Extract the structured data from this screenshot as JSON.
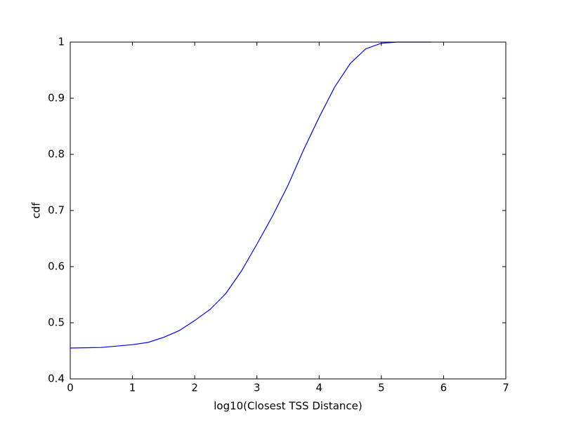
{
  "chart_data": {
    "type": "line",
    "xlabel": "log10(Closest TSS Distance)",
    "ylabel": "cdf",
    "x": [
      0,
      0.5,
      1,
      1.25,
      1.5,
      1.75,
      2,
      2.25,
      2.5,
      2.75,
      3,
      3.25,
      3.5,
      3.75,
      4,
      4.25,
      4.5,
      4.75,
      5,
      5.25,
      5.5,
      5.8
    ],
    "series": [
      {
        "name": "cdf",
        "color": "#0000ff",
        "values": [
          0.455,
          0.456,
          0.461,
          0.465,
          0.474,
          0.486,
          0.504,
          0.524,
          0.552,
          0.592,
          0.64,
          0.69,
          0.745,
          0.808,
          0.866,
          0.92,
          0.962,
          0.988,
          0.998,
          1.0,
          1.0,
          1.0
        ]
      }
    ],
    "xlim": [
      0,
      7
    ],
    "xticks": [
      0,
      1,
      2,
      3,
      4,
      5,
      6,
      7
    ],
    "ylim": [
      0.4,
      1.0
    ],
    "yticks": [
      0.4,
      0.5,
      0.6,
      0.7,
      0.8,
      0.9,
      1.0
    ],
    "grid": false
  }
}
